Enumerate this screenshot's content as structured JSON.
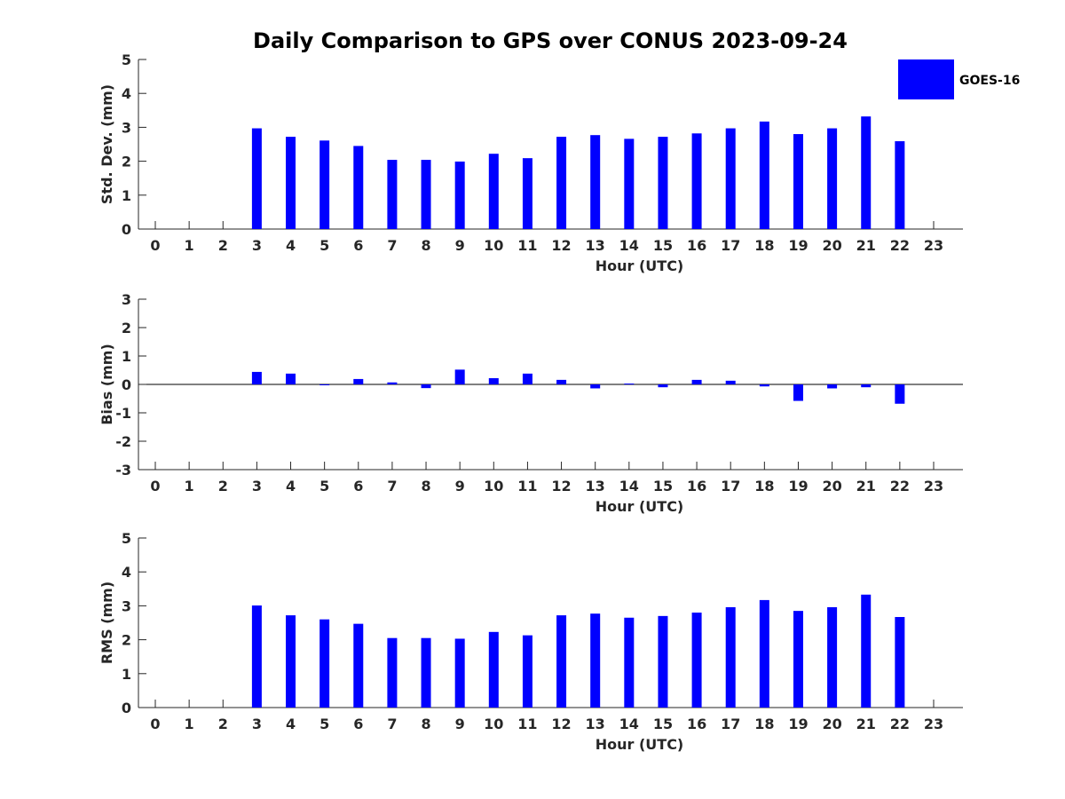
{
  "figure_title": "Daily Comparison to GPS over CONUS 2023-09-24",
  "legend": {
    "label": "GOES-16"
  },
  "colors": {
    "bar": "#0000ff",
    "axis": "#262626"
  },
  "chart_data": [
    {
      "type": "bar",
      "id": "std",
      "ylabel": "Std. Dev. (mm)",
      "xlabel": "Hour (UTC)",
      "ylim": [
        0,
        5
      ],
      "yticks": [
        0,
        1,
        2,
        3,
        4,
        5
      ],
      "categories": [
        0,
        1,
        2,
        3,
        4,
        5,
        6,
        7,
        8,
        9,
        10,
        11,
        12,
        13,
        14,
        15,
        16,
        17,
        18,
        19,
        20,
        21,
        22,
        23
      ],
      "series": [
        {
          "name": "GOES-16",
          "values": [
            null,
            null,
            null,
            2.97,
            2.72,
            2.61,
            2.45,
            2.04,
            2.04,
            1.99,
            2.22,
            2.09,
            2.72,
            2.77,
            2.66,
            2.72,
            2.82,
            2.97,
            3.17,
            2.8,
            2.97,
            3.32,
            2.59,
            null
          ]
        }
      ]
    },
    {
      "type": "bar",
      "id": "bias",
      "ylabel": "Bias (mm)",
      "xlabel": "Hour (UTC)",
      "ylim": [
        -3,
        3
      ],
      "yticks": [
        -3,
        -2,
        -1,
        0,
        1,
        2,
        3
      ],
      "categories": [
        0,
        1,
        2,
        3,
        4,
        5,
        6,
        7,
        8,
        9,
        10,
        11,
        12,
        13,
        14,
        15,
        16,
        17,
        18,
        19,
        20,
        21,
        22,
        23
      ],
      "series": [
        {
          "name": "GOES-16",
          "values": [
            null,
            null,
            null,
            0.44,
            0.38,
            -0.02,
            0.19,
            0.07,
            -0.13,
            0.52,
            0.22,
            0.38,
            0.16,
            -0.14,
            0.03,
            -0.1,
            0.16,
            0.13,
            -0.07,
            -0.58,
            -0.14,
            -0.1,
            -0.68,
            null
          ]
        }
      ]
    },
    {
      "type": "bar",
      "id": "rms",
      "ylabel": "RMS (mm)",
      "xlabel": "Hour (UTC)",
      "ylim": [
        0,
        5
      ],
      "yticks": [
        0,
        1,
        2,
        3,
        4,
        5
      ],
      "categories": [
        0,
        1,
        2,
        3,
        4,
        5,
        6,
        7,
        8,
        9,
        10,
        11,
        12,
        13,
        14,
        15,
        16,
        17,
        18,
        19,
        20,
        21,
        22,
        23
      ],
      "series": [
        {
          "name": "GOES-16",
          "values": [
            null,
            null,
            null,
            3.01,
            2.72,
            2.6,
            2.47,
            2.05,
            2.05,
            2.03,
            2.23,
            2.13,
            2.72,
            2.77,
            2.65,
            2.7,
            2.8,
            2.96,
            3.17,
            2.85,
            2.96,
            3.33,
            2.67,
            null
          ]
        }
      ]
    }
  ]
}
